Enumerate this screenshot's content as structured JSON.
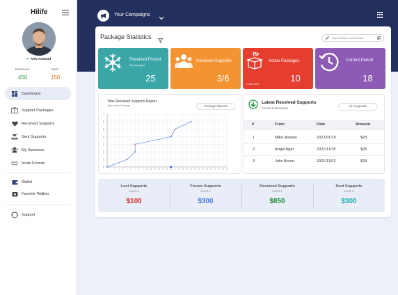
{
  "sidebar": {
    "brand": "Hilife",
    "user_name": "Alex Armand",
    "received_label": "Received",
    "received_value": "450",
    "sent_label": "Sent",
    "sent_value": "150",
    "items": [
      {
        "label": "Dashboard",
        "icon": "dashboard-icon"
      },
      {
        "label": "Support Packages",
        "icon": "package-icon"
      },
      {
        "label": "Received Supports",
        "icon": "heart-icon"
      },
      {
        "label": "Sent Supports",
        "icon": "hands-icon"
      },
      {
        "label": "My Sponsers",
        "icon": "users-icon"
      },
      {
        "label": "Invite Friends",
        "icon": "handshake-icon"
      },
      {
        "label": "Wallet",
        "icon": "wallet-icon"
      },
      {
        "label": "Favorite Wallets",
        "icon": "favorite-icon"
      },
      {
        "label": "Support",
        "icon": "support-icon"
      }
    ]
  },
  "topbar": {
    "campaign_label": "Your Campaigns"
  },
  "panel": {
    "title": "Package Statistics",
    "url": "https://hilifeco.com/22345"
  },
  "cards": [
    {
      "label": "Received Frozed",
      "sub": "All packages",
      "value": "25",
      "color": "#3aa6a8",
      "icon": "snowflake-icon"
    },
    {
      "label": "Received Supports",
      "sub": "",
      "value": "3/6",
      "color": "#f39331",
      "icon": "people-icon"
    },
    {
      "label": "Active Packages",
      "sub": "",
      "value": "10",
      "color": "#e53e2f",
      "icon": "gift-box-icon",
      "tiny": "2 still 1/125"
    },
    {
      "label": "Current Period",
      "sub": "",
      "value": "18",
      "color": "#8d5bb6",
      "icon": "history-icon"
    }
  ],
  "chart_box": {
    "title": "Time Received Supports Report",
    "subtitle": "After Active Package",
    "button": "Package Reports"
  },
  "chart_data": {
    "type": "line",
    "title": "Time Received Supports Report",
    "ylim": [
      0,
      7
    ],
    "y_ticks": [
      "0",
      "1",
      "2",
      "3",
      "4",
      "5",
      "6",
      "7"
    ],
    "x": [
      0,
      5,
      7,
      7,
      16,
      17,
      21
    ],
    "values": [
      0,
      1,
      2,
      3,
      4,
      5,
      6
    ],
    "xlim": [
      0,
      30
    ],
    "grid": true
  },
  "latest": {
    "title": "Latest Received Supports",
    "subtitle": "Frozen & Recieved",
    "button": "All Supports",
    "columns": [
      "#",
      "From",
      "Date",
      "Amount"
    ],
    "rows": [
      [
        "1",
        "Mike Niowen",
        "2022/01/15",
        "$25"
      ],
      [
        "2",
        "Angel Ager",
        "2021/11/25",
        "$25"
      ],
      [
        "3",
        "Jolie Boren",
        "2021/11/02",
        "$25"
      ]
    ]
  },
  "totals": [
    {
      "label": "Lost Supports",
      "level": "Level 2",
      "value": "$100",
      "color": "#d62828"
    },
    {
      "label": "Frozen Supports",
      "level": "Level 2",
      "value": "$300",
      "color": "#4a76e0"
    },
    {
      "label": "Received Supports",
      "level": "Level 2",
      "value": "$850",
      "color": "#1e8a3c"
    },
    {
      "label": "Sent Supports",
      "level": "Level 2",
      "value": "$300",
      "color": "#17b0ae"
    }
  ]
}
